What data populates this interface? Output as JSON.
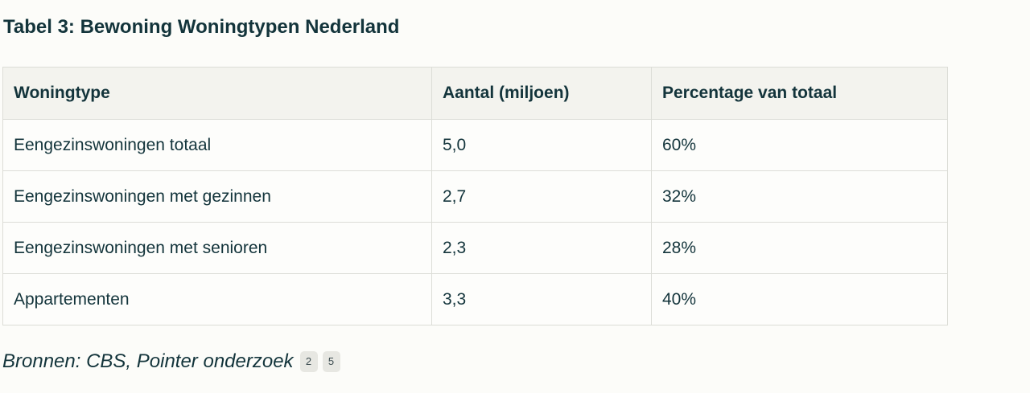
{
  "title": "Tabel 3: Bewoning Woningtypen Nederland",
  "table": {
    "headers": [
      "Woningtype",
      "Aantal (miljoen)",
      "Percentage van totaal"
    ],
    "rows": [
      [
        "Eengezinswoningen totaal",
        "5,0",
        "60%"
      ],
      [
        "Eengezinswoningen met gezinnen",
        "2,7",
        "32%"
      ],
      [
        "Eengezinswoningen met senioren",
        "2,3",
        "28%"
      ],
      [
        "Appartementen",
        "3,3",
        "40%"
      ]
    ]
  },
  "sources": {
    "text": "Bronnen: CBS, Pointer onderzoek",
    "citations": [
      "2",
      "5"
    ]
  }
}
